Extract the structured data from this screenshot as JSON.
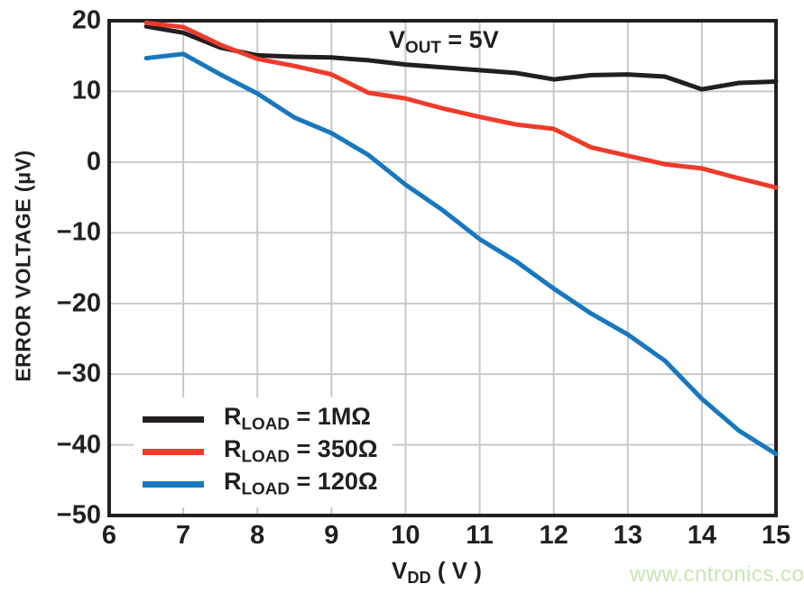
{
  "page": {
    "background": "#ffffff",
    "watermark": {
      "text": "www.cntronics.com",
      "color": "#c9e7b2"
    }
  },
  "chart_data": {
    "type": "line",
    "title_annotation": {
      "main": "V",
      "sub": "OUT",
      "rest": " = 5V"
    },
    "xlabel": {
      "main": "V",
      "sub": "DD",
      "rest": " ( V )"
    },
    "ylabel": "ERROR VOLTAGE (μV)",
    "xlim": [
      6,
      15
    ],
    "ylim": [
      -50,
      20
    ],
    "x_ticks": [
      6,
      7,
      8,
      9,
      10,
      11,
      12,
      13,
      14,
      15
    ],
    "x_tick_labels": [
      "6",
      "7",
      "8",
      "9",
      "10",
      "11",
      "12",
      "13",
      "14",
      "15"
    ],
    "y_ticks": [
      20,
      10,
      0,
      -10,
      -20,
      -30,
      -40,
      -50
    ],
    "y_tick_labels": [
      "20",
      "10",
      "0",
      "−10",
      "−20",
      "−30",
      "−40",
      "−50"
    ],
    "grid": true,
    "legend_position": "lower-left",
    "x": [
      6.5,
      7,
      7.5,
      8,
      8.5,
      9,
      9.5,
      10,
      10.5,
      11,
      11.5,
      12,
      12.5,
      13,
      13.5,
      14,
      14.5,
      15
    ],
    "series": [
      {
        "name_main": "R",
        "name_sub": "LOAD",
        "name_rest": " = 1MΩ",
        "color": "#231f20",
        "values": [
          19.2,
          18.3,
          16.2,
          15.1,
          14.9,
          14.8,
          14.4,
          13.8,
          13.4,
          13.0,
          12.6,
          11.7,
          12.3,
          12.4,
          12.1,
          10.3,
          11.2,
          11.4
        ]
      },
      {
        "name_main": "R",
        "name_sub": "LOAD",
        "name_rest": " = 350Ω",
        "color": "#ee3b2b",
        "values": [
          19.7,
          19.1,
          16.6,
          14.6,
          13.6,
          12.4,
          9.8,
          9.0,
          7.6,
          6.4,
          5.3,
          4.7,
          2.1,
          0.9,
          -0.3,
          -0.9,
          -2.3,
          -3.6
        ]
      },
      {
        "name_main": "R",
        "name_sub": "LOAD",
        "name_rest": " = 120Ω",
        "color": "#1878be",
        "values": [
          14.7,
          15.3,
          12.4,
          9.7,
          6.3,
          4.1,
          1.0,
          -3.2,
          -6.8,
          -10.9,
          -14.1,
          -17.9,
          -21.4,
          -24.4,
          -28.1,
          -33.5,
          -38.0,
          -41.3
        ]
      }
    ],
    "colors": {
      "grid": "#c6c8ca",
      "axis": "#231f20",
      "background": "#ffffff"
    }
  }
}
